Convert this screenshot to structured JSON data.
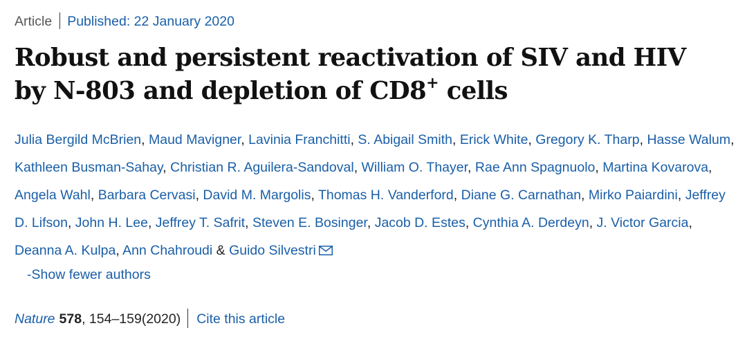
{
  "meta": {
    "article_type": "Article",
    "published_label": "Published: 22 January 2020"
  },
  "title": {
    "line1": "Robust and persistent reactivation of SIV and HIV",
    "line2_pre": "by N-803 and depletion of CD8",
    "line2_sup": "+",
    "line2_post": " cells"
  },
  "authors": {
    "list": [
      "Julia Bergild McBrien",
      "Maud Mavigner",
      "Lavinia Franchitti",
      "S. Abigail Smith",
      "Erick White",
      "Gregory K. Tharp",
      "Hasse Walum",
      "Kathleen Busman-Sahay",
      "Christian R. Aguilera-Sandoval",
      "William O. Thayer",
      "Rae Ann Spagnuolo",
      "Martina Kovarova",
      "Angela Wahl",
      "Barbara Cervasi",
      "David M. Margolis",
      "Thomas H. Vanderford",
      "Diane G. Carnathan",
      "Mirko Paiardini",
      "Jeffrey D. Lifson",
      "John H. Lee",
      "Jeffrey T. Safrit",
      "Steven E. Bosinger",
      "Jacob D. Estes",
      "Cynthia A. Derdeyn",
      "J. Victor Garcia",
      "Deanna A. Kulpa",
      "Ann Chahroudi"
    ],
    "separator": ", ",
    "conjunction": " & ",
    "last_author": "Guido Silvestri",
    "contact_icon": "envelope-icon",
    "show_fewer_label": "-Show fewer authors"
  },
  "citation": {
    "journal": "Nature",
    "volume": "578",
    "pages_year": ", 154–159(2020)",
    "cite_label": "Cite this article"
  },
  "colors": {
    "link": "#1a5fa8",
    "text": "#222222",
    "title": "#111111"
  }
}
